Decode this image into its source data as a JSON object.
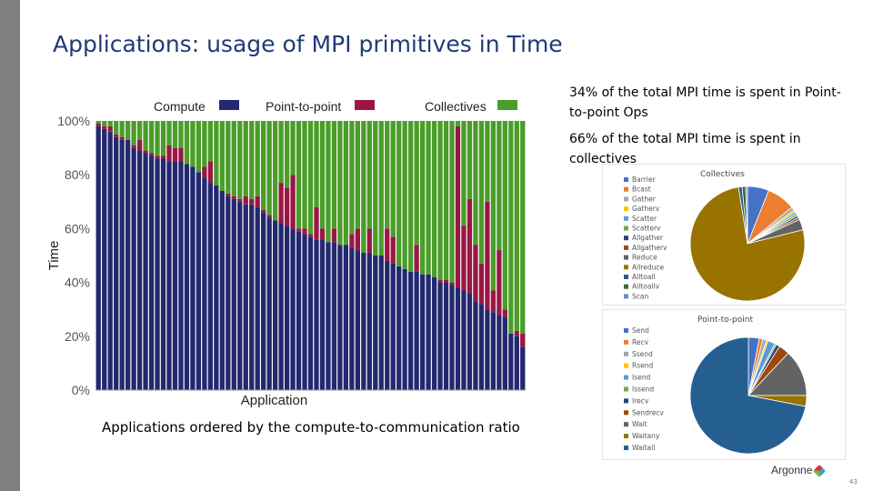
{
  "slide": {
    "title": "Applications: usage of MPI primitives in Time",
    "note_p2p": "34% of the total MPI time is spent in Point-to-point Ops",
    "note_collectives": "66% of the total MPI time is spent in collectives",
    "caption": "Applications ordered by the compute-to-communication ratio",
    "logo_text": "Argonne",
    "page_number": "43"
  },
  "colors": {
    "compute": "#23286f",
    "p2p": "#9a1745",
    "collectives": "#4a9d29"
  },
  "chart_data": [
    {
      "type": "bar",
      "stacked": true,
      "xlabel": "Application",
      "ylabel": "Time",
      "ylim": [
        0,
        100
      ],
      "yticks": [
        "0%",
        "20%",
        "40%",
        "60%",
        "80%",
        "100%"
      ],
      "legend": [
        "Compute",
        "Point-to-point",
        "Collectives"
      ],
      "legend_position": "top",
      "series": [
        {
          "name": "Compute",
          "values": [
            98,
            97,
            96,
            94,
            93,
            93,
            90,
            89,
            88,
            87,
            86,
            86,
            85,
            85,
            85,
            84,
            83,
            81,
            79,
            77,
            76,
            74,
            72,
            71,
            70,
            69,
            69,
            68,
            66,
            64,
            63,
            62,
            61,
            60,
            59,
            58,
            57,
            56,
            56,
            55,
            55,
            54,
            54,
            53,
            52,
            51,
            51,
            50,
            50,
            48,
            47,
            46,
            45,
            44,
            44,
            43,
            43,
            42,
            40,
            40,
            39,
            38,
            37,
            36,
            33,
            32,
            30,
            29,
            28,
            27,
            21,
            20,
            16
          ]
        },
        {
          "name": "Point-to-point",
          "values": [
            1,
            1,
            2,
            1,
            1,
            0,
            1,
            4,
            1,
            1,
            1,
            1,
            6,
            5,
            5,
            0,
            0,
            0,
            4,
            8,
            0,
            0,
            1,
            1,
            1,
            3,
            2,
            4,
            1,
            1,
            0,
            15,
            14,
            20,
            1,
            2,
            1,
            12,
            4,
            0,
            5,
            0,
            0,
            5,
            8,
            0,
            9,
            0,
            0,
            12,
            10,
            0,
            0,
            0,
            10,
            0,
            0,
            0,
            1,
            1,
            1,
            60,
            24,
            35,
            21,
            15,
            40,
            8,
            24,
            3,
            0,
            2,
            5
          ]
        }
      ],
      "remainder_series": "Collectives"
    },
    {
      "type": "pie",
      "title": "Collectives",
      "legend_position": "left",
      "categories": [
        "Barrier",
        "Bcast",
        "Gather",
        "Gatherv",
        "Scatter",
        "Scatterv",
        "Allgather",
        "Allgatherv",
        "Reduce",
        "Allreduce",
        "Alltoall",
        "Alltoallv",
        "Scan"
      ],
      "values": [
        6,
        8,
        1,
        0.6,
        0.6,
        0.6,
        0.6,
        0.6,
        3,
        76,
        1,
        1,
        0.5
      ],
      "colors": [
        "#4472c4",
        "#ed7d31",
        "#a5a5a5",
        "#ffc000",
        "#5b9bd5",
        "#70ad47",
        "#264478",
        "#9e480e",
        "#636363",
        "#997300",
        "#255e91",
        "#43682b",
        "#698ed0"
      ]
    },
    {
      "type": "pie",
      "title": "Point-to-point",
      "legend_position": "left",
      "categories": [
        "Send",
        "Recv",
        "Ssend",
        "Rsend",
        "Isend",
        "Issend",
        "Irecv",
        "Sendrecv",
        "Wait",
        "Waitany",
        "Waitall"
      ],
      "values": [
        3,
        1,
        1,
        0.5,
        2,
        0.5,
        1,
        3,
        13,
        3,
        72
      ],
      "colors": [
        "#4472c4",
        "#ed7d31",
        "#a5a5a5",
        "#ffc000",
        "#5b9bd5",
        "#70ad47",
        "#264478",
        "#9e480e",
        "#636363",
        "#997300",
        "#255e91"
      ]
    }
  ]
}
